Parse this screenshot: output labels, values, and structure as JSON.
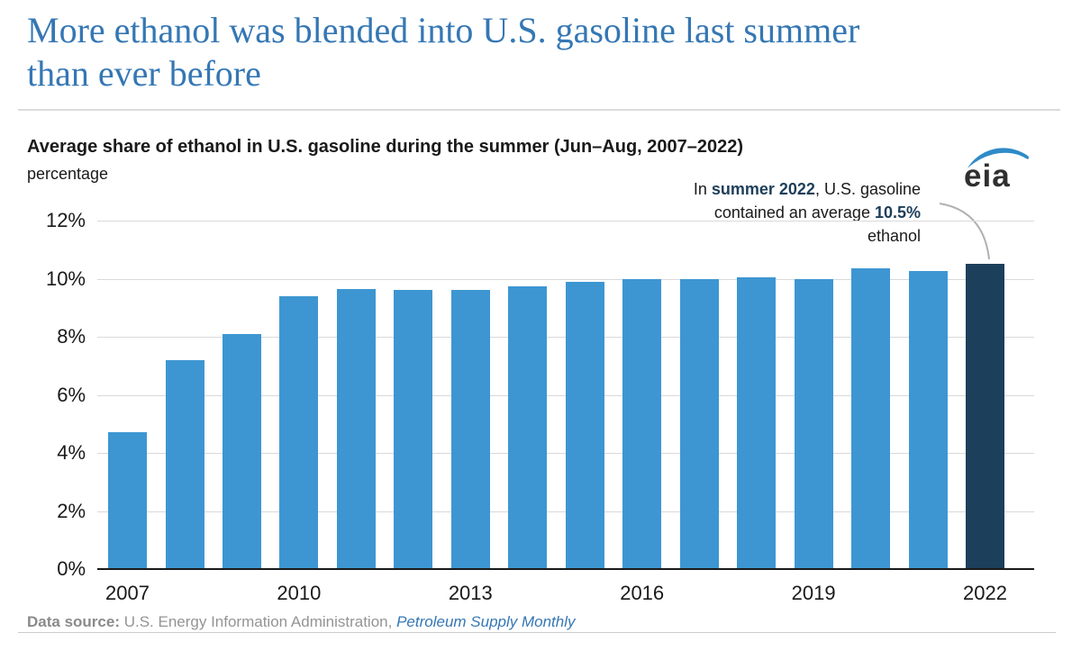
{
  "page": {
    "title_line1": "More ethanol was blended into U.S. gasoline last summer",
    "title_line2": "than ever before"
  },
  "chart": {
    "subtitle": "Average share of ethanol in U.S. gasoline during the summer (Jun–Aug, 2007–2022)",
    "unit_label": "percentage",
    "annotation": {
      "line1_pre": "In ",
      "line1_bold": "summer 2022",
      "line1_post": ", U.S. gasoline",
      "line2_pre": "contained an average ",
      "line2_bold": "10.5%",
      "line3": "ethanol"
    }
  },
  "logo": {
    "text": "eia",
    "swoosh_color": "#2E8BC8"
  },
  "chart_data": {
    "type": "bar",
    "title": "Average share of ethanol in U.S. gasoline during the summer (Jun–Aug, 2007–2022)",
    "xlabel": "",
    "ylabel": "percentage",
    "categories": [
      "2007",
      "2008",
      "2009",
      "2010",
      "2011",
      "2012",
      "2013",
      "2014",
      "2015",
      "2016",
      "2017",
      "2018",
      "2019",
      "2020",
      "2021",
      "2022"
    ],
    "values": [
      4.7,
      7.2,
      8.1,
      9.4,
      9.65,
      9.6,
      9.6,
      9.75,
      9.9,
      10.0,
      10.0,
      10.05,
      10.0,
      10.35,
      10.25,
      10.5
    ],
    "ylim": [
      0,
      12
    ],
    "ytick_labels": [
      "0%",
      "2%",
      "4%",
      "6%",
      "8%",
      "10%",
      "12%"
    ],
    "x_tick_years": [
      "2007",
      "2010",
      "2013",
      "2016",
      "2019",
      "2022"
    ],
    "grid": "horizontal",
    "legend": "none",
    "bar_color": "#3D96D2",
    "highlight_color": "#1C3F5C",
    "highlight_index": 15,
    "highlight_label": "10.5%"
  },
  "footer": {
    "label": "Data source:",
    "source": " U.S. Energy Information Administration, ",
    "publication": "Petroleum Supply Monthly"
  }
}
